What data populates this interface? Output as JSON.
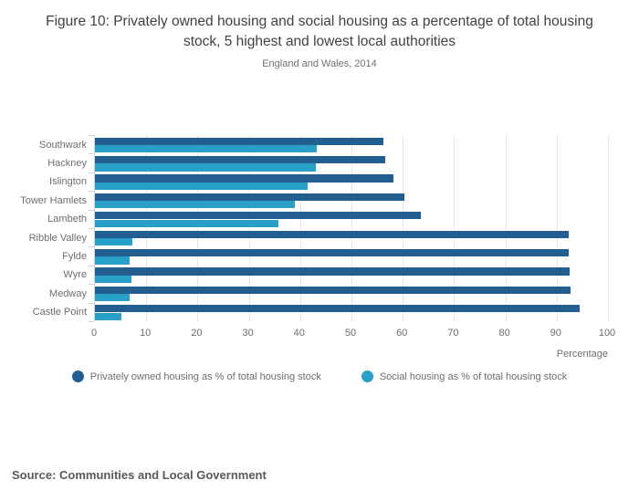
{
  "header": {
    "title": "Figure 10: Privately owned housing and social housing as a percentage of total housing stock, 5 highest and lowest local authorities",
    "subtitle": "England and Wales, 2014"
  },
  "chart_data": {
    "type": "bar",
    "orientation": "horizontal",
    "title": "Figure 10: Privately owned housing and social housing as a percentage of total housing stock, 5 highest and lowest local authorities",
    "subtitle": "England and Wales, 2014",
    "categories": [
      "Southwark",
      "Hackney",
      "Islington",
      "Tower Hamlets",
      "Lambeth",
      "Ribble Valley",
      "Fylde",
      "Wyre",
      "Medway",
      "Castle Point"
    ],
    "series": [
      {
        "name": "Privately owned housing as % of total housing stock",
        "color": "#225e90",
        "values": [
          56.3,
          56.5,
          58.1,
          60.4,
          63.5,
          92.3,
          92.4,
          92.5,
          92.7,
          94.5
        ]
      },
      {
        "name": "Social housing as % of total housing stock",
        "color": "#29a0c8",
        "values": [
          43.3,
          43.0,
          41.5,
          39.0,
          35.8,
          7.3,
          6.7,
          7.2,
          6.7,
          5.1
        ]
      }
    ],
    "xlabel": "Percentage",
    "ylabel": "",
    "xlim": [
      0,
      100
    ],
    "x_ticks": [
      0,
      10,
      20,
      30,
      40,
      50,
      60,
      70,
      80,
      90,
      100
    ],
    "grid": "vertical",
    "legend_position": "bottom"
  },
  "footer": {
    "source": "Source: Communities and Local Government"
  }
}
